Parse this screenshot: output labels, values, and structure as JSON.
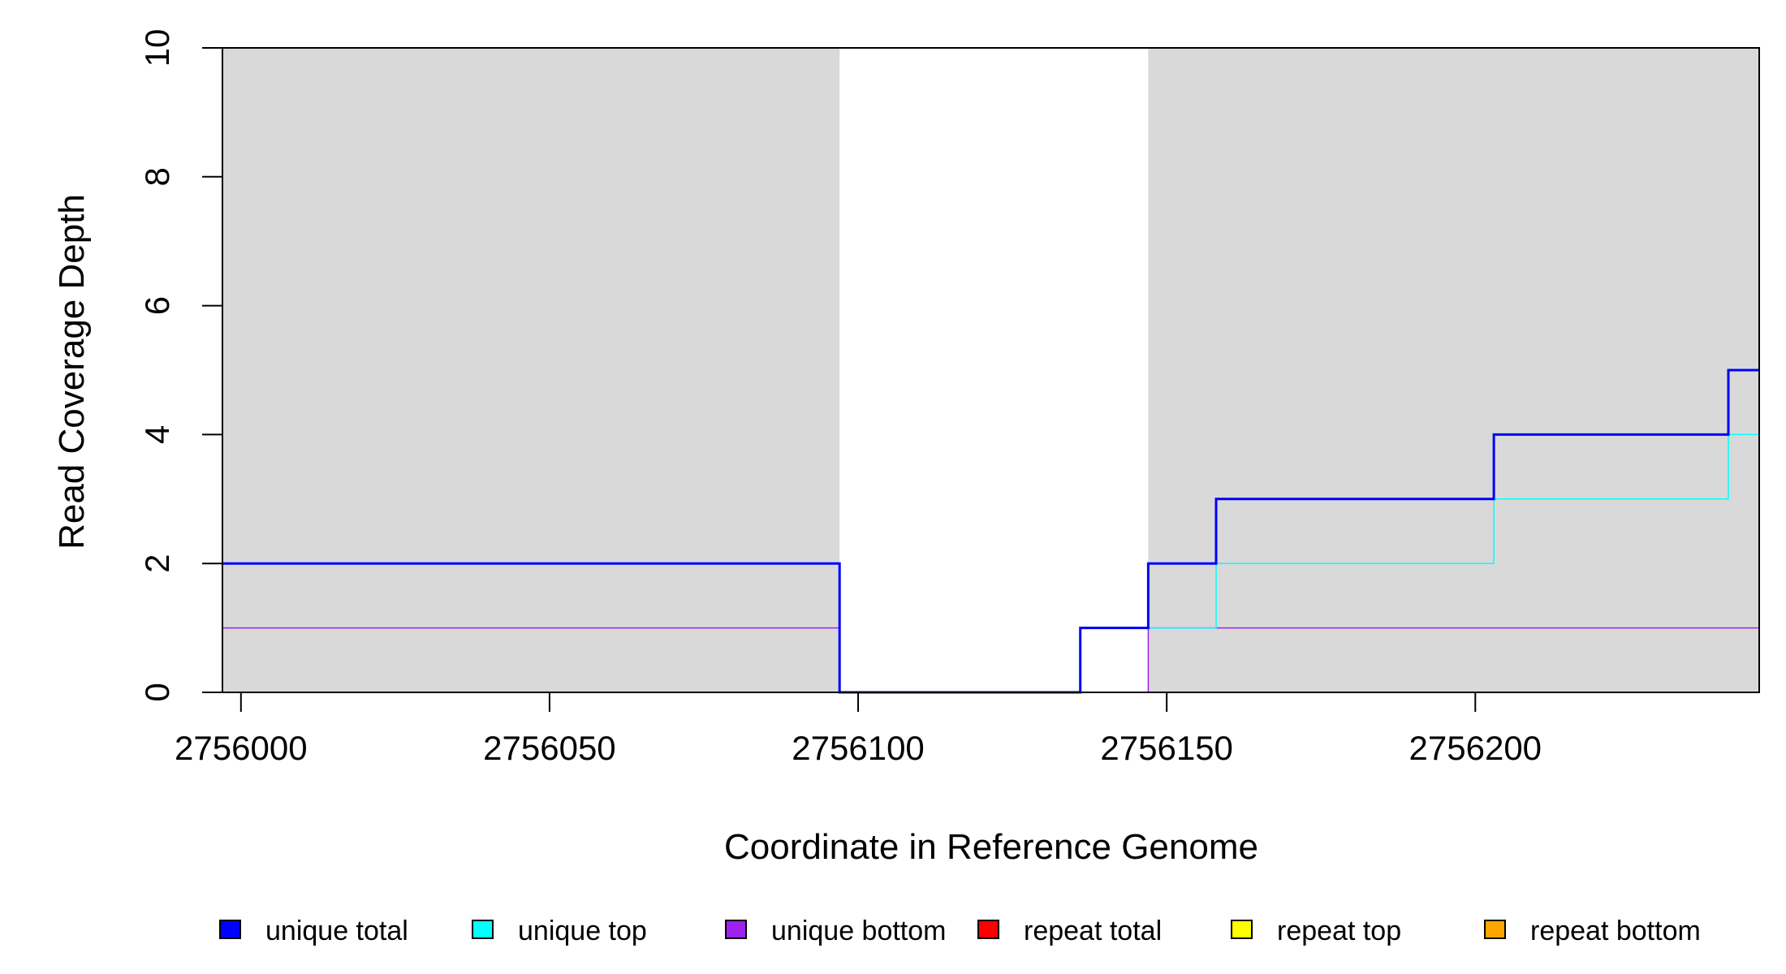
{
  "chart_data": {
    "type": "line",
    "xlabel": "Coordinate in Reference Genome",
    "ylabel": "Read Coverage Depth",
    "xlim": [
      2755997,
      2756246
    ],
    "ylim": [
      0,
      10
    ],
    "x_ticks": [
      2756000,
      2756050,
      2756100,
      2756150,
      2756200
    ],
    "y_ticks": [
      0,
      2,
      4,
      6,
      8,
      10
    ],
    "shaded_regions": [
      {
        "x": [
          2755997,
          2756097
        ],
        "color": "#d9d9d9"
      },
      {
        "x": [
          2756147,
          2756246
        ],
        "color": "#d9d9d9"
      }
    ],
    "series": [
      {
        "name": "unique total",
        "color": "#0000ff",
        "points": [
          [
            2755997,
            2
          ],
          [
            2756097,
            2
          ],
          [
            2756097,
            0
          ],
          [
            2756136,
            0
          ],
          [
            2756136,
            1
          ],
          [
            2756147,
            1
          ],
          [
            2756147,
            2
          ],
          [
            2756158,
            2
          ],
          [
            2756158,
            3
          ],
          [
            2756203,
            3
          ],
          [
            2756203,
            4
          ],
          [
            2756241,
            4
          ],
          [
            2756241,
            5
          ],
          [
            2756246,
            5
          ]
        ]
      },
      {
        "name": "unique top",
        "color": "#00ffff",
        "points": [
          [
            2755997,
            0
          ],
          [
            2756136,
            0
          ],
          [
            2756136,
            1
          ],
          [
            2756158,
            1
          ],
          [
            2756158,
            2
          ],
          [
            2756203,
            2
          ],
          [
            2756203,
            3
          ],
          [
            2756241,
            3
          ],
          [
            2756241,
            4
          ],
          [
            2756246,
            4
          ]
        ]
      },
      {
        "name": "unique bottom",
        "color": "#a020f0",
        "points": [
          [
            2755997,
            1
          ],
          [
            2756097,
            1
          ],
          [
            2756097,
            0
          ],
          [
            2756147,
            0
          ],
          [
            2756147,
            1
          ],
          [
            2756246,
            1
          ]
        ]
      },
      {
        "name": "repeat total",
        "color": "#ff0000",
        "points": [
          [
            2755997,
            0
          ],
          [
            2756246,
            0
          ]
        ]
      },
      {
        "name": "repeat top",
        "color": "#ffff00",
        "points": [
          [
            2755997,
            0
          ],
          [
            2756246,
            0
          ]
        ]
      },
      {
        "name": "repeat bottom",
        "color": "#ffa500",
        "points": [
          [
            2755997,
            0
          ],
          [
            2756246,
            0
          ]
        ]
      }
    ],
    "legend_position": "bottom"
  }
}
